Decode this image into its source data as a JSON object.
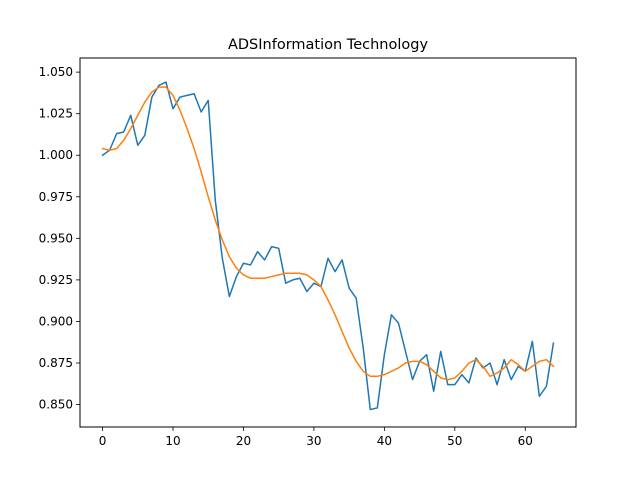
{
  "chart_data": {
    "type": "line",
    "title": "ADSInformation Technology",
    "xlabel": "",
    "ylabel": "",
    "xlim": [
      -3.2,
      67.2
    ],
    "ylim": [
      0.8365,
      1.0585
    ],
    "xticks": [
      0,
      10,
      20,
      30,
      40,
      50,
      60
    ],
    "yticks": [
      0.85,
      0.875,
      0.9,
      0.925,
      0.95,
      0.975,
      1.0,
      1.025,
      1.05
    ],
    "grid": false,
    "legend": "none",
    "series": [
      {
        "color": "#1f77b4",
        "x": [
          0,
          1,
          2,
          3,
          4,
          5,
          6,
          7,
          8,
          9,
          10,
          11,
          12,
          13,
          14,
          15,
          16,
          17,
          18,
          19,
          20,
          21,
          22,
          23,
          24,
          25,
          26,
          27,
          28,
          29,
          30,
          31,
          32,
          33,
          34,
          35,
          36,
          37,
          38,
          39,
          40,
          41,
          42,
          43,
          44,
          45,
          46,
          47,
          48,
          49,
          50,
          51,
          52,
          53,
          54,
          55,
          56,
          57,
          58,
          59,
          60,
          61,
          62,
          63,
          64
        ],
        "values": [
          1.0,
          1.003,
          1.013,
          1.014,
          1.024,
          1.006,
          1.012,
          1.035,
          1.042,
          1.044,
          1.028,
          1.035,
          1.036,
          1.037,
          1.026,
          1.033,
          0.973,
          0.938,
          0.915,
          0.927,
          0.935,
          0.934,
          0.942,
          0.937,
          0.945,
          0.944,
          0.923,
          0.925,
          0.926,
          0.918,
          0.923,
          0.921,
          0.938,
          0.93,
          0.937,
          0.92,
          0.914,
          0.884,
          0.847,
          0.848,
          0.88,
          0.904,
          0.899,
          0.882,
          0.865,
          0.876,
          0.88,
          0.858,
          0.882,
          0.862,
          0.862,
          0.868,
          0.863,
          0.878,
          0.872,
          0.875,
          0.862,
          0.877,
          0.865,
          0.873,
          0.87,
          0.888,
          0.855,
          0.861,
          0.887
        ]
      },
      {
        "color": "#ff7f0e",
        "x": [
          0,
          1,
          2,
          3,
          4,
          5,
          6,
          7,
          8,
          9,
          10,
          11,
          12,
          13,
          14,
          15,
          16,
          17,
          18,
          19,
          20,
          21,
          22,
          23,
          24,
          25,
          26,
          27,
          28,
          29,
          30,
          31,
          32,
          33,
          34,
          35,
          36,
          37,
          38,
          39,
          40,
          41,
          42,
          43,
          44,
          45,
          46,
          47,
          48,
          49,
          50,
          51,
          52,
          53,
          54,
          55,
          56,
          57,
          58,
          59,
          60,
          61,
          62,
          63,
          64
        ],
        "values": [
          1.004,
          1.003,
          1.004,
          1.009,
          1.016,
          1.024,
          1.032,
          1.038,
          1.041,
          1.041,
          1.036,
          1.027,
          1.016,
          1.004,
          0.99,
          0.975,
          0.961,
          0.949,
          0.939,
          0.932,
          0.928,
          0.926,
          0.926,
          0.926,
          0.927,
          0.928,
          0.929,
          0.929,
          0.929,
          0.928,
          0.925,
          0.921,
          0.913,
          0.904,
          0.894,
          0.884,
          0.876,
          0.87,
          0.867,
          0.867,
          0.868,
          0.87,
          0.872,
          0.875,
          0.876,
          0.876,
          0.874,
          0.87,
          0.866,
          0.865,
          0.866,
          0.87,
          0.875,
          0.877,
          0.873,
          0.867,
          0.869,
          0.872,
          0.877,
          0.874,
          0.87,
          0.873,
          0.876,
          0.877,
          0.873
        ]
      }
    ]
  }
}
